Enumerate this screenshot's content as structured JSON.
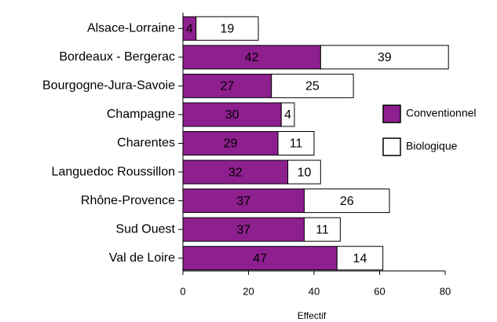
{
  "chart_data": {
    "type": "stacked_barh",
    "xlabel": "Effectif",
    "categories": [
      "Alsace-Lorraine",
      "Bordeaux - Bergerac",
      "Bourgogne-Jura-Savoie",
      "Champagne",
      "Charentes",
      "Languedoc Roussillon",
      "Rhône-Provence",
      "Sud Ouest",
      "Val de Loire"
    ],
    "series": [
      {
        "name": "Conventionnel",
        "color": "#8e1f8e",
        "values": [
          4,
          42,
          27,
          30,
          29,
          32,
          37,
          37,
          47
        ]
      },
      {
        "name": "Biologique",
        "color": "#ffffff",
        "values": [
          19,
          39,
          25,
          4,
          11,
          10,
          26,
          11,
          14
        ]
      }
    ],
    "xlim": [
      0,
      80
    ],
    "xticks": [
      0,
      20,
      40,
      60,
      80
    ],
    "legend": "right"
  }
}
